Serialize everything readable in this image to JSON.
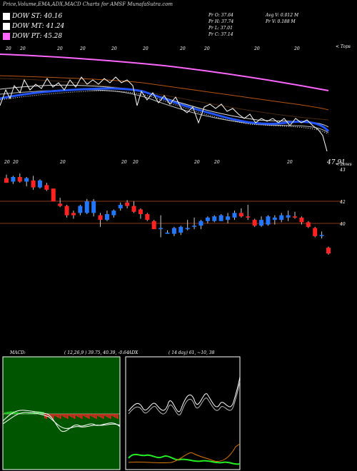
{
  "header": {
    "title": "Price,Volume,EMA,ADX,MACD Charts for AMSF MunafaSutra.com"
  },
  "legend": [
    {
      "label": "DOW ST: 40.16",
      "color": "#ffffff"
    },
    {
      "label": "DOW MT: 41.24",
      "color": "#ffffff"
    },
    {
      "label": "DOW PT: 45.28",
      "color": "#ff66ff"
    }
  ],
  "stats": {
    "pr_o": "Pr   O: 37.64",
    "pr_h": "Pr   H: 37.74",
    "pr_l": "Pr   L: 37.01",
    "pr_c": "Pr   C: 37.14",
    "avg_v": "Avg V: 0.012  M",
    "pr_v": "Pr   V: 0.188  M"
  },
  "labels": {
    "tops": "< Tops",
    "lows": "< Lows",
    "last_price": "47.91",
    "macd_title": "MACD:",
    "macd_values": "( 12,26,9 ) 39.75,  40.39,  -0.64",
    "adx_title": "ADX",
    "adx_values": "( 14  day) 61,  ~10,  38"
  },
  "chart_data": [
    {
      "type": "line",
      "name": "EMA chart",
      "colors": {
        "ema_long": "#ff66ff",
        "ema_mid": "#b8540f",
        "ema_fast": "#2255ff",
        "price": "#ffffff"
      }
    },
    {
      "type": "candlestick",
      "name": "Price candles",
      "price_levels": [
        42,
        40
      ],
      "top_tick": "43",
      "candles": [
        {
          "o": 44.6,
          "h": 44.9,
          "l": 44.2,
          "c": 44.2
        },
        {
          "o": 44.3,
          "h": 44.8,
          "l": 44.1,
          "c": 44.7
        },
        {
          "o": 44.7,
          "h": 45.0,
          "l": 44.2,
          "c": 44.3
        },
        {
          "o": 44.3,
          "h": 44.7,
          "l": 43.9,
          "c": 44.6
        },
        {
          "o": 44.4,
          "h": 44.8,
          "l": 43.6,
          "c": 43.8
        },
        {
          "o": 43.8,
          "h": 44.5,
          "l": 43.7,
          "c": 44.4
        },
        {
          "o": 44.0,
          "h": 44.2,
          "l": 43.5,
          "c": 43.6
        },
        {
          "o": 43.7,
          "h": 43.7,
          "l": 42.6,
          "c": 42.6
        },
        {
          "o": 42.4,
          "h": 42.9,
          "l": 42.1,
          "c": 42.2
        },
        {
          "o": 42.2,
          "h": 42.3,
          "l": 41.2,
          "c": 41.4
        },
        {
          "o": 41.6,
          "h": 41.8,
          "l": 41.1,
          "c": 41.4
        },
        {
          "o": 41.6,
          "h": 42.3,
          "l": 41.4,
          "c": 42.2
        },
        {
          "o": 41.6,
          "h": 42.8,
          "l": 41.5,
          "c": 42.6
        },
        {
          "o": 41.6,
          "h": 42.8,
          "l": 41.3,
          "c": 42.6
        },
        {
          "o": 41.4,
          "h": 41.6,
          "l": 40.4,
          "c": 41.0
        },
        {
          "o": 41.0,
          "h": 41.8,
          "l": 40.9,
          "c": 41.5
        },
        {
          "o": 41.4,
          "h": 41.9,
          "l": 41.2,
          "c": 41.8
        },
        {
          "o": 42.0,
          "h": 42.5,
          "l": 41.8,
          "c": 42.3
        },
        {
          "o": 42.5,
          "h": 42.7,
          "l": 42.0,
          "c": 42.2
        },
        {
          "o": 42.2,
          "h": 42.6,
          "l": 41.6,
          "c": 41.7
        },
        {
          "o": 41.9,
          "h": 42.0,
          "l": 41.1,
          "c": 41.5
        },
        {
          "o": 41.5,
          "h": 41.6,
          "l": 40.9,
          "c": 41.0
        },
        {
          "o": 40.9,
          "h": 41.0,
          "l": 40.2,
          "c": 40.2
        },
        {
          "o": 40.2,
          "h": 41.4,
          "l": 39.5,
          "c": 40.3
        },
        {
          "o": 39.8,
          "h": 40.1,
          "l": 39.8,
          "c": 39.9
        },
        {
          "o": 39.8,
          "h": 40.4,
          "l": 39.6,
          "c": 40.3
        },
        {
          "o": 39.9,
          "h": 40.5,
          "l": 39.7,
          "c": 40.4
        },
        {
          "o": 40.2,
          "h": 41.0,
          "l": 40.1,
          "c": 40.3
        },
        {
          "o": 40.4,
          "h": 41.2,
          "l": 40.2,
          "c": 40.5
        },
        {
          "o": 40.5,
          "h": 41.0,
          "l": 40.2,
          "c": 40.9
        },
        {
          "o": 40.9,
          "h": 41.3,
          "l": 40.7,
          "c": 41.2
        },
        {
          "o": 40.9,
          "h": 41.4,
          "l": 40.8,
          "c": 41.3
        },
        {
          "o": 40.9,
          "h": 41.5,
          "l": 40.9,
          "c": 41.4
        },
        {
          "o": 41.0,
          "h": 41.6,
          "l": 40.7,
          "c": 41.3
        },
        {
          "o": 41.2,
          "h": 41.8,
          "l": 41.0,
          "c": 41.6
        },
        {
          "o": 41.6,
          "h": 42.0,
          "l": 41.2,
          "c": 41.3
        },
        {
          "o": 41.3,
          "h": 42.3,
          "l": 41.0,
          "c": 41.2
        },
        {
          "o": 41.0,
          "h": 41.1,
          "l": 40.4,
          "c": 40.5
        },
        {
          "o": 40.5,
          "h": 41.3,
          "l": 40.4,
          "c": 41.0
        },
        {
          "o": 40.6,
          "h": 41.4,
          "l": 40.5,
          "c": 41.3
        },
        {
          "o": 41.0,
          "h": 41.4,
          "l": 40.6,
          "c": 41.2
        },
        {
          "o": 41.0,
          "h": 41.6,
          "l": 40.8,
          "c": 41.4
        },
        {
          "o": 41.2,
          "h": 41.8,
          "l": 40.9,
          "c": 41.4
        },
        {
          "o": 41.3,
          "h": 41.7,
          "l": 41.1,
          "c": 41.2
        },
        {
          "o": 41.2,
          "h": 41.3,
          "l": 40.6,
          "c": 40.8
        },
        {
          "o": 40.8,
          "h": 40.9,
          "l": 40.3,
          "c": 40.4
        },
        {
          "o": 40.3,
          "h": 40.4,
          "l": 39.5,
          "c": 39.6
        },
        {
          "o": 39.6,
          "h": 40.0,
          "l": 39.4,
          "c": 39.7
        },
        {
          "o": 38.6,
          "h": 38.7,
          "l": 38.0,
          "c": 38.1
        }
      ],
      "ylim": [
        37.5,
        45.5
      ]
    },
    {
      "type": "bar",
      "name": "MACD panel",
      "colors": {
        "positive": "#22ee22",
        "negative": "#ff2222",
        "background": "#005500"
      }
    },
    {
      "type": "line",
      "name": "ADX panel",
      "colors": {
        "adx": "#ffffff",
        "plus_di": "#22ee22",
        "minus_di": "#dd7700"
      }
    }
  ]
}
